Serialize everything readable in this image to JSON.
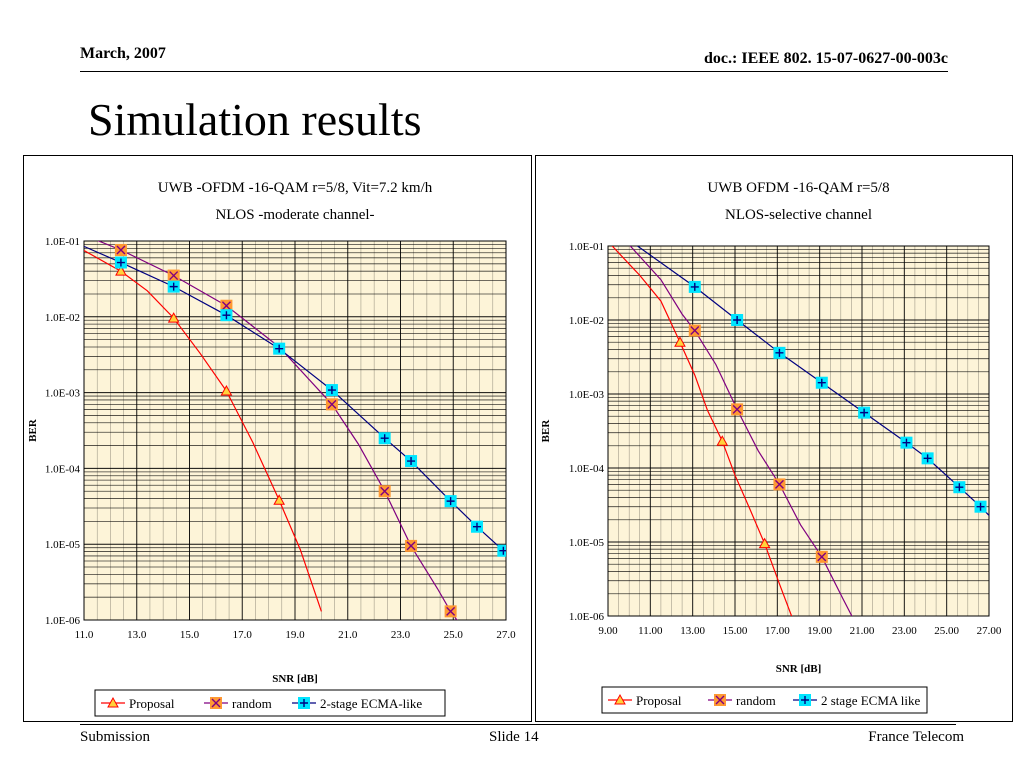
{
  "header": {
    "date": "March, 2007",
    "doc": "doc.: IEEE 802. 15-07-0627-00-003c"
  },
  "slide_title": "Simulation results",
  "footer": {
    "left": "Submission",
    "center": "Slide 14",
    "right": "France Telecom"
  },
  "colors": {
    "proposal": "#ff0000",
    "random": "#800080",
    "ecma": "#000080",
    "plot_bg": "#fdf4d8",
    "grid": "#000000",
    "marker_fill_proposal": "#ffd23c",
    "marker_fill_random": "#ff9933",
    "marker_fill_ecma": "#00e5ff"
  },
  "chart_data": [
    {
      "type": "line",
      "title": "UWB -OFDM -16-QAM r=5/8, Vit=7.2 km/h",
      "subtitle": "NLOS -moderate channel-",
      "xlabel": "SNR [dB]",
      "ylabel": "BER",
      "xlim": [
        11,
        27
      ],
      "ylim": [
        1e-06,
        0.1
      ],
      "log_y": true,
      "x_ticks": [
        "11.0",
        "13.0",
        "15.0",
        "17.0",
        "19.0",
        "21.0",
        "23.0",
        "25.0",
        "27.0"
      ],
      "y_ticks": [
        "1.0E-01",
        "1.0E-02",
        "1.0E-03",
        "1.0E-04",
        "1.0E-05",
        "1.0E-06"
      ],
      "grid": true,
      "legend_position": "bottom",
      "series": [
        {
          "name": "Proposal",
          "line": [
            [
              11.0,
              0.075
            ],
            [
              12.4,
              0.04
            ],
            [
              13.4,
              0.022
            ],
            [
              14.4,
              0.0096
            ],
            [
              15.4,
              0.0033
            ],
            [
              16.4,
              0.00105
            ],
            [
              17.4,
              0.00022
            ],
            [
              18.4,
              3.8e-05
            ],
            [
              19.2,
              8.5e-06
            ],
            [
              20.0,
              1.3e-06
            ]
          ],
          "markers": [
            [
              12.4,
              0.04
            ],
            [
              14.4,
              0.0096
            ],
            [
              16.4,
              0.00105
            ],
            [
              18.4,
              3.8e-05
            ]
          ]
        },
        {
          "name": "random",
          "line": [
            [
              11.0,
              0.12
            ],
            [
              12.4,
              0.076
            ],
            [
              14.4,
              0.035
            ],
            [
              16.4,
              0.014
            ],
            [
              18.4,
              0.004
            ],
            [
              20.4,
              0.0007
            ],
            [
              21.4,
              0.00021
            ],
            [
              22.4,
              5e-05
            ],
            [
              23.4,
              9.5e-06
            ],
            [
              24.4,
              2.6e-06
            ],
            [
              24.9,
              1.3e-06
            ],
            [
              25.6,
              6e-07
            ]
          ],
          "markers": [
            [
              12.4,
              0.076
            ],
            [
              14.4,
              0.035
            ],
            [
              16.4,
              0.014
            ],
            [
              20.4,
              0.0007
            ],
            [
              22.4,
              5e-05
            ],
            [
              23.4,
              9.5e-06
            ],
            [
              24.9,
              1.3e-06
            ]
          ]
        },
        {
          "name": "2-stage ECMA-like",
          "line": [
            [
              11.0,
              0.085
            ],
            [
              12.4,
              0.052
            ],
            [
              14.4,
              0.025
            ],
            [
              16.4,
              0.0105
            ],
            [
              18.4,
              0.0038
            ],
            [
              20.4,
              0.00108
            ],
            [
              22.4,
              0.00025
            ],
            [
              23.4,
              0.000125
            ],
            [
              24.9,
              3.7e-05
            ],
            [
              25.9,
              1.7e-05
            ],
            [
              26.9,
              8.2e-06
            ]
          ],
          "markers": [
            [
              12.4,
              0.052
            ],
            [
              14.4,
              0.025
            ],
            [
              16.4,
              0.0105
            ],
            [
              18.4,
              0.0038
            ],
            [
              20.4,
              0.00108
            ],
            [
              22.4,
              0.00025
            ],
            [
              23.4,
              0.000125
            ],
            [
              24.9,
              3.7e-05
            ],
            [
              25.9,
              1.7e-05
            ],
            [
              26.9,
              8.2e-06
            ]
          ]
        }
      ]
    },
    {
      "type": "line",
      "title": "UWB OFDM -16-QAM r=5/8",
      "subtitle": "NLOS-selective channel",
      "xlabel": "SNR [dB]",
      "ylabel": "BER",
      "xlim": [
        9,
        27
      ],
      "ylim": [
        1e-06,
        0.1
      ],
      "log_y": true,
      "x_ticks": [
        "9.00",
        "11.00",
        "13.00",
        "15.00",
        "17.00",
        "19.00",
        "21.00",
        "23.00",
        "25.00",
        "27.00"
      ],
      "y_ticks": [
        "1.0E-01",
        "1.0E-02",
        "1.0E-03",
        "1.0E-04",
        "1.0E-05",
        "1.0E-06"
      ],
      "grid": true,
      "legend_position": "bottom",
      "series": [
        {
          "name": "Proposal",
          "line": [
            [
              9.2,
              0.1
            ],
            [
              10.5,
              0.04
            ],
            [
              11.5,
              0.018
            ],
            [
              12.4,
              0.005
            ],
            [
              13.1,
              0.0018
            ],
            [
              13.7,
              0.0006
            ],
            [
              14.4,
              0.00023
            ],
            [
              15.0,
              8e-05
            ],
            [
              15.7,
              2.8e-05
            ],
            [
              16.4,
              9.5e-06
            ],
            [
              17.1,
              2.7e-06
            ],
            [
              17.8,
              8e-07
            ]
          ],
          "markers": [
            [
              12.4,
              0.005
            ],
            [
              14.4,
              0.00023
            ],
            [
              16.4,
              9.5e-06
            ]
          ]
        },
        {
          "name": "random",
          "line": [
            [
              9.8,
              0.12
            ],
            [
              11.5,
              0.035
            ],
            [
              12.5,
              0.012
            ],
            [
              13.1,
              0.0072
            ],
            [
              14.1,
              0.0025
            ],
            [
              15.1,
              0.00062
            ],
            [
              16.1,
              0.00017
            ],
            [
              17.1,
              6e-05
            ],
            [
              18.1,
              1.7e-05
            ],
            [
              19.1,
              6.3e-06
            ],
            [
              20.1,
              1.7e-06
            ],
            [
              20.8,
              7e-07
            ]
          ],
          "markers": [
            [
              13.1,
              0.0072
            ],
            [
              15.1,
              0.00062
            ],
            [
              17.1,
              6e-05
            ],
            [
              19.1,
              6.3e-06
            ]
          ]
        },
        {
          "name": "2 stage ECMA like",
          "line": [
            [
              10.0,
              0.12
            ],
            [
              13.1,
              0.028
            ],
            [
              15.1,
              0.01
            ],
            [
              17.1,
              0.0036
            ],
            [
              19.1,
              0.00142
            ],
            [
              21.1,
              0.00056
            ],
            [
              23.1,
              0.00022
            ],
            [
              24.1,
              0.000135
            ],
            [
              25.6,
              5.5e-05
            ],
            [
              26.6,
              3e-05
            ],
            [
              27.2,
              2e-05
            ]
          ],
          "markers": [
            [
              13.1,
              0.028
            ],
            [
              15.1,
              0.01
            ],
            [
              17.1,
              0.0036
            ],
            [
              19.1,
              0.00142
            ],
            [
              21.1,
              0.00056
            ],
            [
              23.1,
              0.00022
            ],
            [
              24.1,
              0.000135
            ],
            [
              25.6,
              5.5e-05
            ],
            [
              26.6,
              3e-05
            ]
          ]
        }
      ]
    }
  ]
}
